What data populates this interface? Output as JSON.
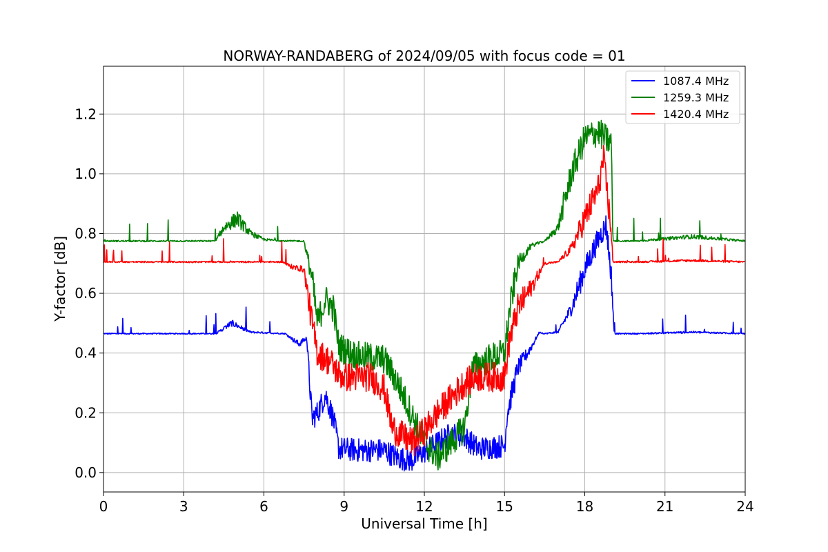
{
  "chart_data": {
    "type": "line",
    "title": "NORWAY-RANDABERG of 2024/09/05 with focus code = 01",
    "xlabel": "Universal Time [h]",
    "ylabel": "Y-factor [dB]",
    "xlim": [
      0,
      24
    ],
    "ylim": [
      -0.065,
      1.36
    ],
    "xticks": [
      "0",
      "3",
      "6",
      "9",
      "12",
      "15",
      "18",
      "21",
      "24"
    ],
    "yticks": [
      "0.0",
      "0.2",
      "0.4",
      "0.6",
      "0.8",
      "1.0",
      "1.2"
    ],
    "grid": true,
    "legend_position": "top-right",
    "series": [
      {
        "name": "1087.4 MHz",
        "color": "#0000ff",
        "noise": 0.04,
        "x": [
          0,
          4.2,
          4.8,
          5.5,
          6.8,
          7.3,
          7.6,
          7.8,
          8.0,
          8.3,
          8.6,
          8.8,
          9.5,
          10.5,
          11.0,
          11.5,
          12.0,
          12.5,
          13.0,
          13.5,
          14.0,
          15.0,
          15.1,
          15.5,
          16.0,
          16.3,
          16.5,
          17.0,
          17.5,
          18.0,
          18.5,
          18.8,
          19.0,
          19.1,
          20.0,
          22.0,
          24.0
        ],
        "y": [
          0.465,
          0.465,
          0.5,
          0.47,
          0.465,
          0.43,
          0.45,
          0.18,
          0.2,
          0.26,
          0.18,
          0.08,
          0.075,
          0.075,
          0.05,
          0.04,
          0.07,
          0.1,
          0.13,
          0.12,
          0.08,
          0.09,
          0.2,
          0.35,
          0.42,
          0.47,
          0.465,
          0.47,
          0.55,
          0.68,
          0.78,
          0.83,
          0.65,
          0.465,
          0.465,
          0.47,
          0.465
        ]
      },
      {
        "name": "1259.3 MHz",
        "color": "#008000",
        "noise": 0.05,
        "x": [
          0,
          4.2,
          4.5,
          5.0,
          5.5,
          6.0,
          6.8,
          7.5,
          7.8,
          8.0,
          8.3,
          8.6,
          8.8,
          9.5,
          10.5,
          11.0,
          11.5,
          12.0,
          12.5,
          13.0,
          13.5,
          13.8,
          14.5,
          15.0,
          15.2,
          15.5,
          16.0,
          16.5,
          17.0,
          17.5,
          18.0,
          18.5,
          19.0,
          19.05,
          20.0,
          22.0,
          24.0
        ],
        "y": [
          0.775,
          0.775,
          0.82,
          0.85,
          0.8,
          0.78,
          0.775,
          0.775,
          0.65,
          0.5,
          0.58,
          0.55,
          0.42,
          0.39,
          0.38,
          0.3,
          0.2,
          0.1,
          0.05,
          0.1,
          0.15,
          0.35,
          0.385,
          0.4,
          0.55,
          0.7,
          0.76,
          0.775,
          0.82,
          1.0,
          1.12,
          1.14,
          1.1,
          0.775,
          0.775,
          0.79,
          0.775
        ]
      },
      {
        "name": "1420.4 MHz",
        "color": "#ff0000",
        "noise": 0.05,
        "x": [
          0,
          6.7,
          7.0,
          7.5,
          7.8,
          8.0,
          8.5,
          8.8,
          9.0,
          10.0,
          10.5,
          10.8,
          11.2,
          11.6,
          12.0,
          12.5,
          13.0,
          13.5,
          14.0,
          14.5,
          15.0,
          15.2,
          15.5,
          16.0,
          16.5,
          17.0,
          17.5,
          18.0,
          18.5,
          18.7,
          19.0,
          19.05,
          20.0,
          22.0,
          24.0
        ],
        "y": [
          0.705,
          0.705,
          0.69,
          0.68,
          0.5,
          0.4,
          0.37,
          0.33,
          0.32,
          0.32,
          0.28,
          0.15,
          0.12,
          0.1,
          0.14,
          0.2,
          0.25,
          0.3,
          0.32,
          0.32,
          0.32,
          0.45,
          0.55,
          0.62,
          0.7,
          0.705,
          0.75,
          0.85,
          0.95,
          1.05,
          0.8,
          0.705,
          0.705,
          0.71,
          0.705
        ]
      }
    ]
  }
}
